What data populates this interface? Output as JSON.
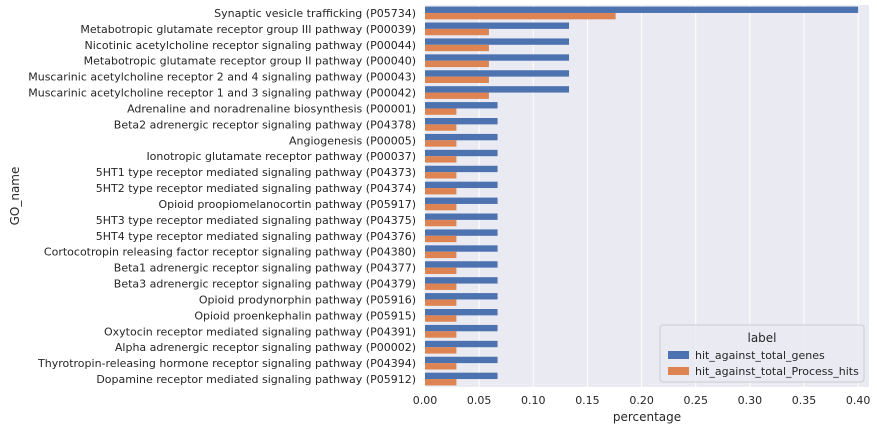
{
  "chart_data": {
    "type": "bar",
    "orientation": "horizontal",
    "xlabel": "percentage",
    "ylabel": "GO_name",
    "xlim": [
      0,
      0.41
    ],
    "xticks": [
      "0.00",
      "0.05",
      "0.10",
      "0.15",
      "0.20",
      "0.25",
      "0.30",
      "0.35",
      "0.40"
    ],
    "grid": true,
    "legend": {
      "title": "label",
      "position": "bottom-right"
    },
    "categories": [
      "Synaptic vesicle trafficking (P05734)",
      "Metabotropic glutamate receptor group III pathway (P00039)",
      "Nicotinic acetylcholine receptor signaling pathway (P00044)",
      "Metabotropic glutamate receptor group II pathway (P00040)",
      "Muscarinic acetylcholine receptor 2 and 4 signaling pathway (P00043)",
      "Muscarinic acetylcholine receptor 1 and 3 signaling pathway (P00042)",
      "Adrenaline and noradrenaline biosynthesis (P00001)",
      "Beta2 adrenergic receptor signaling pathway (P04378)",
      "Angiogenesis (P00005)",
      "Ionotropic glutamate receptor pathway (P00037)",
      "5HT1 type receptor mediated signaling pathway (P04373)",
      "5HT2 type receptor mediated signaling pathway (P04374)",
      "Opioid proopiomelanocortin pathway (P05917)",
      "5HT3 type receptor mediated signaling pathway (P04375)",
      "5HT4 type receptor mediated signaling pathway (P04376)",
      "Cortocotropin releasing factor receptor signaling pathway (P04380)",
      "Beta1 adrenergic receptor signaling pathway (P04377)",
      "Beta3 adrenergic receptor signaling pathway (P04379)",
      "Opioid prodynorphin pathway (P05916)",
      "Opioid proenkephalin pathway (P05915)",
      "Oxytocin receptor mediated signaling pathway (P04391)",
      "Alpha adrenergic receptor signaling pathway (P00002)",
      "Thyrotropin-releasing hormone receptor signaling pathway (P04394)",
      "Dopamine receptor mediated signaling pathway (P05912)"
    ],
    "series": [
      {
        "name": "hit_against_total_genes",
        "color": "#4c72b0",
        "values": [
          0.4,
          0.133,
          0.133,
          0.133,
          0.133,
          0.133,
          0.067,
          0.067,
          0.067,
          0.067,
          0.067,
          0.067,
          0.067,
          0.067,
          0.067,
          0.067,
          0.067,
          0.067,
          0.067,
          0.067,
          0.067,
          0.067,
          0.067,
          0.067
        ]
      },
      {
        "name": "hit_against_total_Process_hits",
        "color": "#dd8452",
        "values": [
          0.176,
          0.059,
          0.059,
          0.059,
          0.059,
          0.059,
          0.029,
          0.029,
          0.029,
          0.029,
          0.029,
          0.029,
          0.029,
          0.029,
          0.029,
          0.029,
          0.029,
          0.029,
          0.029,
          0.029,
          0.029,
          0.029,
          0.029,
          0.029
        ]
      }
    ]
  }
}
